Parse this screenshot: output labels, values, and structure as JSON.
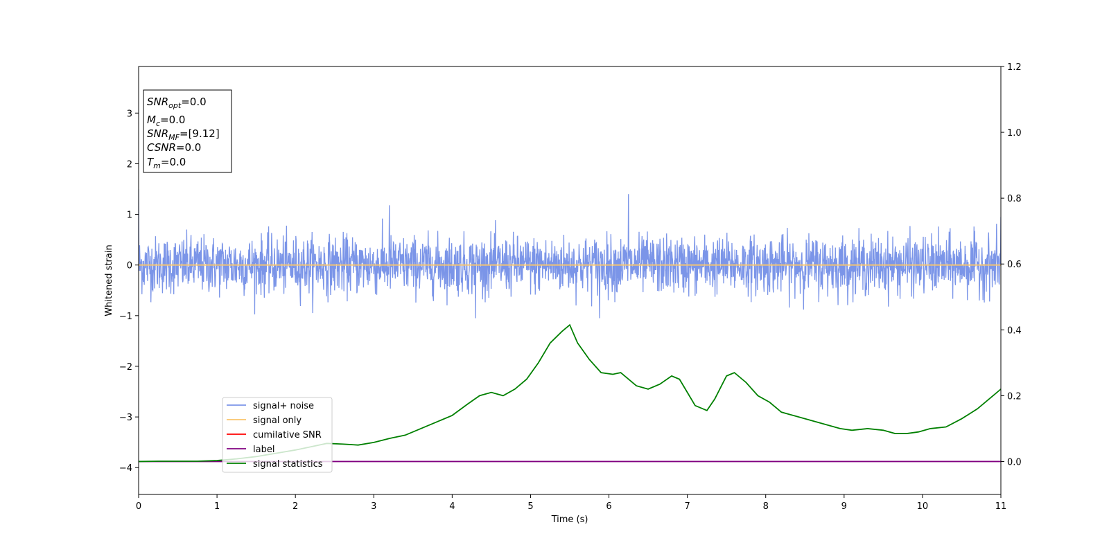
{
  "chart_data": {
    "type": "line",
    "xlabel": "Time (s)",
    "ylabel": "Whitened strain",
    "xlim": [
      0,
      11
    ],
    "ylim_left": [
      -4.53,
      3.92
    ],
    "ylim_right": [
      -0.1,
      1.2
    ],
    "x_ticks": [
      0,
      1,
      2,
      3,
      4,
      5,
      6,
      7,
      8,
      9,
      10,
      11
    ],
    "y_ticks_left": [
      -4,
      -3,
      -2,
      -1,
      0,
      1,
      2,
      3
    ],
    "y_ticks_right": [
      0.0,
      0.2,
      0.4,
      0.6,
      0.8,
      1.0,
      1.2
    ],
    "y_tick_labels_left": [
      "−4",
      "−3",
      "−2",
      "−1",
      "0",
      "1",
      "2",
      "3"
    ],
    "y_tick_labels_right": [
      "0.0",
      "0.2",
      "0.4",
      "0.6",
      "0.8",
      "1.0",
      "1.2"
    ],
    "legend_placement": "lower-left",
    "grid": false,
    "info_box": {
      "snr_opt": {
        "base": "SNR",
        "sub": "opt",
        "value": "=0.0"
      },
      "mc": {
        "base": "M",
        "sub": "c",
        "value": "=0.0"
      },
      "snr_mf": {
        "base": "SNR",
        "sub": "MF",
        "value": "=[9.12]"
      },
      "csnr": {
        "base": "CSNR",
        "value": "=0.0"
      },
      "tm": {
        "base": "T",
        "sub": "m",
        "value": "=0.0"
      }
    },
    "series": [
      {
        "name": "signal+ noise",
        "axis": "left",
        "color": "#7b95e8",
        "style": "noise",
        "noise_range": [
          -0.6,
          0.6
        ],
        "noise_extremes": [
          -1.05,
          1.4
        ],
        "peaks": [
          [
            3.2,
            1.18
          ],
          [
            6.25,
            1.4
          ],
          [
            4.3,
            -1.05
          ],
          [
            5.88,
            -1.05
          ],
          [
            11,
            0.95
          ]
        ]
      },
      {
        "name": "signal only",
        "axis": "left",
        "color": "#f9c56c",
        "x": [
          0,
          11
        ],
        "y": [
          0,
          0
        ]
      },
      {
        "name": "cumilative SNR",
        "axis": "right",
        "color": "#ff0000",
        "x": [],
        "y": []
      },
      {
        "name": "label",
        "axis": "right",
        "color": "#800080",
        "x": [
          0,
          11
        ],
        "y": [
          0,
          0
        ]
      },
      {
        "name": "signal statistics",
        "axis": "right",
        "color": "#008000",
        "x": [
          0,
          0.25,
          0.5,
          0.75,
          1.0,
          1.25,
          1.5,
          1.75,
          2.0,
          2.2,
          2.4,
          2.6,
          2.8,
          3.0,
          3.2,
          3.4,
          3.6,
          3.8,
          4.0,
          4.2,
          4.35,
          4.5,
          4.65,
          4.8,
          4.95,
          5.1,
          5.25,
          5.4,
          5.5,
          5.6,
          5.75,
          5.9,
          6.05,
          6.15,
          6.25,
          6.35,
          6.5,
          6.65,
          6.8,
          6.9,
          7.0,
          7.1,
          7.25,
          7.35,
          7.5,
          7.6,
          7.75,
          7.9,
          8.05,
          8.2,
          8.35,
          8.5,
          8.65,
          8.8,
          8.95,
          9.1,
          9.3,
          9.5,
          9.65,
          9.8,
          9.95,
          10.1,
          10.3,
          10.5,
          10.7,
          10.9,
          11.0
        ],
        "y": [
          0,
          0.001,
          0.001,
          0.001,
          0.003,
          0.008,
          0.015,
          0.025,
          0.035,
          0.045,
          0.055,
          0.053,
          0.05,
          0.058,
          0.07,
          0.08,
          0.1,
          0.12,
          0.14,
          0.175,
          0.2,
          0.21,
          0.2,
          0.22,
          0.25,
          0.3,
          0.36,
          0.395,
          0.415,
          0.36,
          0.31,
          0.27,
          0.265,
          0.27,
          0.25,
          0.23,
          0.22,
          0.235,
          0.26,
          0.25,
          0.21,
          0.17,
          0.155,
          0.19,
          0.26,
          0.27,
          0.24,
          0.2,
          0.18,
          0.15,
          0.14,
          0.13,
          0.12,
          0.11,
          0.1,
          0.095,
          0.1,
          0.095,
          0.085,
          0.085,
          0.09,
          0.1,
          0.105,
          0.13,
          0.16,
          0.2,
          0.22
        ]
      }
    ]
  }
}
